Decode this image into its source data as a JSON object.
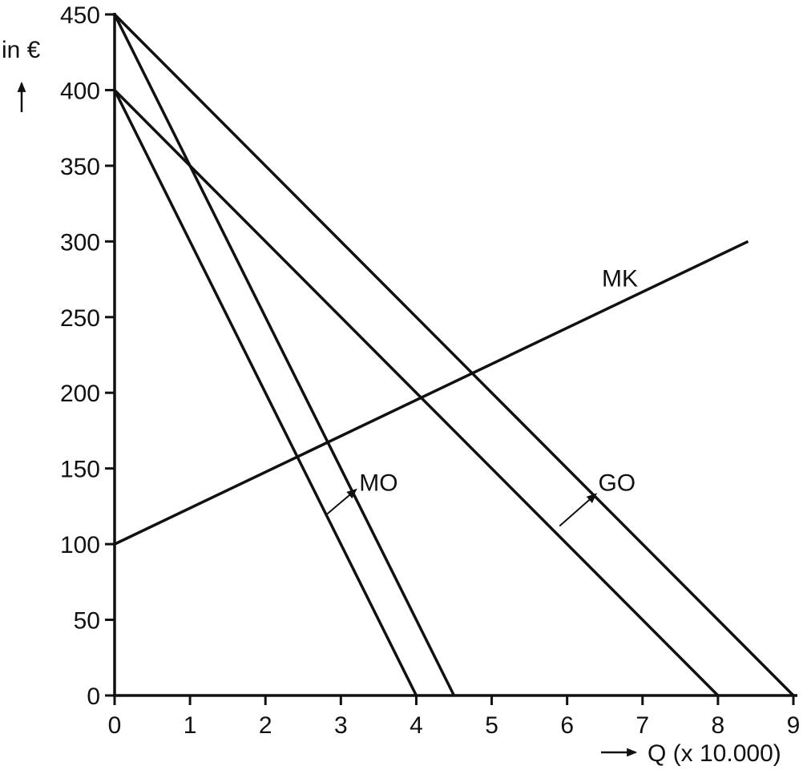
{
  "page": {
    "background": "#ffffff",
    "line_color": "#111111"
  },
  "chart_data": {
    "type": "line",
    "title": "",
    "ylabel": "in €",
    "xlabel": "Q (x 10.000)",
    "xlim": [
      0,
      9
    ],
    "ylim": [
      0,
      450
    ],
    "xticks": [
      0,
      1,
      2,
      3,
      4,
      5,
      6,
      7,
      8,
      9
    ],
    "yticks": [
      0,
      50,
      100,
      150,
      200,
      250,
      300,
      350,
      400,
      450
    ],
    "grid": false,
    "legend_position": "none",
    "line_color": "#111111",
    "series": [
      {
        "name": "GO-shifted",
        "label": "GO",
        "points": [
          [
            0,
            450
          ],
          [
            9,
            0
          ]
        ],
        "width": 3.5,
        "description": "average revenue / demand line after outward shift: P = 450 - 50Q"
      },
      {
        "name": "MO-shifted",
        "label": "MO",
        "points": [
          [
            0,
            450
          ],
          [
            4.5,
            0
          ]
        ],
        "width": 3.5,
        "description": "marginal revenue line after outward shift: P = 450 - 100Q"
      },
      {
        "name": "GO-original",
        "label": "GO",
        "points": [
          [
            0,
            400
          ],
          [
            8,
            0
          ]
        ],
        "width": 3.5,
        "description": "average revenue / demand line before shift: P = 400 - 50Q"
      },
      {
        "name": "MO-original",
        "label": "MO",
        "points": [
          [
            0,
            400
          ],
          [
            4,
            0
          ]
        ],
        "width": 3.5,
        "description": "marginal revenue line before shift: P = 400 - 100Q"
      },
      {
        "name": "MK",
        "label": "MK",
        "points": [
          [
            0,
            100
          ],
          [
            8.4,
            300
          ]
        ],
        "width": 3.5,
        "description": "marginal cost line rising from 100"
      }
    ],
    "annotations": [
      {
        "id": "curve-label-mk",
        "text": "MK",
        "x": 6.7,
        "y": 276
      },
      {
        "id": "curve-label-mo",
        "text": "MO",
        "x": 3.5,
        "y": 141
      },
      {
        "id": "curve-label-go",
        "text": "GO",
        "x": 6.66,
        "y": 141
      }
    ],
    "shift_arrows": [
      {
        "id": "shift-arrow-mo",
        "from": [
          2.82,
          120
        ],
        "to": [
          3.2,
          136
        ]
      },
      {
        "id": "shift-arrow-go",
        "from": [
          5.9,
          112
        ],
        "to": [
          6.38,
          133
        ]
      }
    ]
  }
}
